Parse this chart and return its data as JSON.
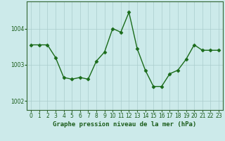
{
  "x": [
    0,
    1,
    2,
    3,
    4,
    5,
    6,
    7,
    8,
    9,
    10,
    11,
    12,
    13,
    14,
    15,
    16,
    17,
    18,
    19,
    20,
    21,
    22,
    23
  ],
  "y": [
    1003.55,
    1003.55,
    1003.55,
    1003.2,
    1002.65,
    1002.6,
    1002.65,
    1002.6,
    1003.1,
    1003.35,
    1004.0,
    1003.9,
    1004.45,
    1003.45,
    1002.85,
    1002.4,
    1002.4,
    1002.75,
    1002.85,
    1003.15,
    1003.55,
    1003.4,
    1003.4,
    1003.4
  ],
  "line_color": "#1a6b1a",
  "marker": "D",
  "markersize": 2.5,
  "linewidth": 1.0,
  "background_color": "#cceaea",
  "grid_color": "#aacccc",
  "axis_color": "#336633",
  "tick_color": "#1a5c1a",
  "ylabel_ticks": [
    1002,
    1003,
    1004
  ],
  "ylim": [
    1001.75,
    1004.75
  ],
  "xlim": [
    -0.5,
    23.5
  ],
  "xlabel": "Graphe pression niveau de la mer (hPa)",
  "xlabel_fontsize": 6.5,
  "tick_fontsize": 5.5
}
